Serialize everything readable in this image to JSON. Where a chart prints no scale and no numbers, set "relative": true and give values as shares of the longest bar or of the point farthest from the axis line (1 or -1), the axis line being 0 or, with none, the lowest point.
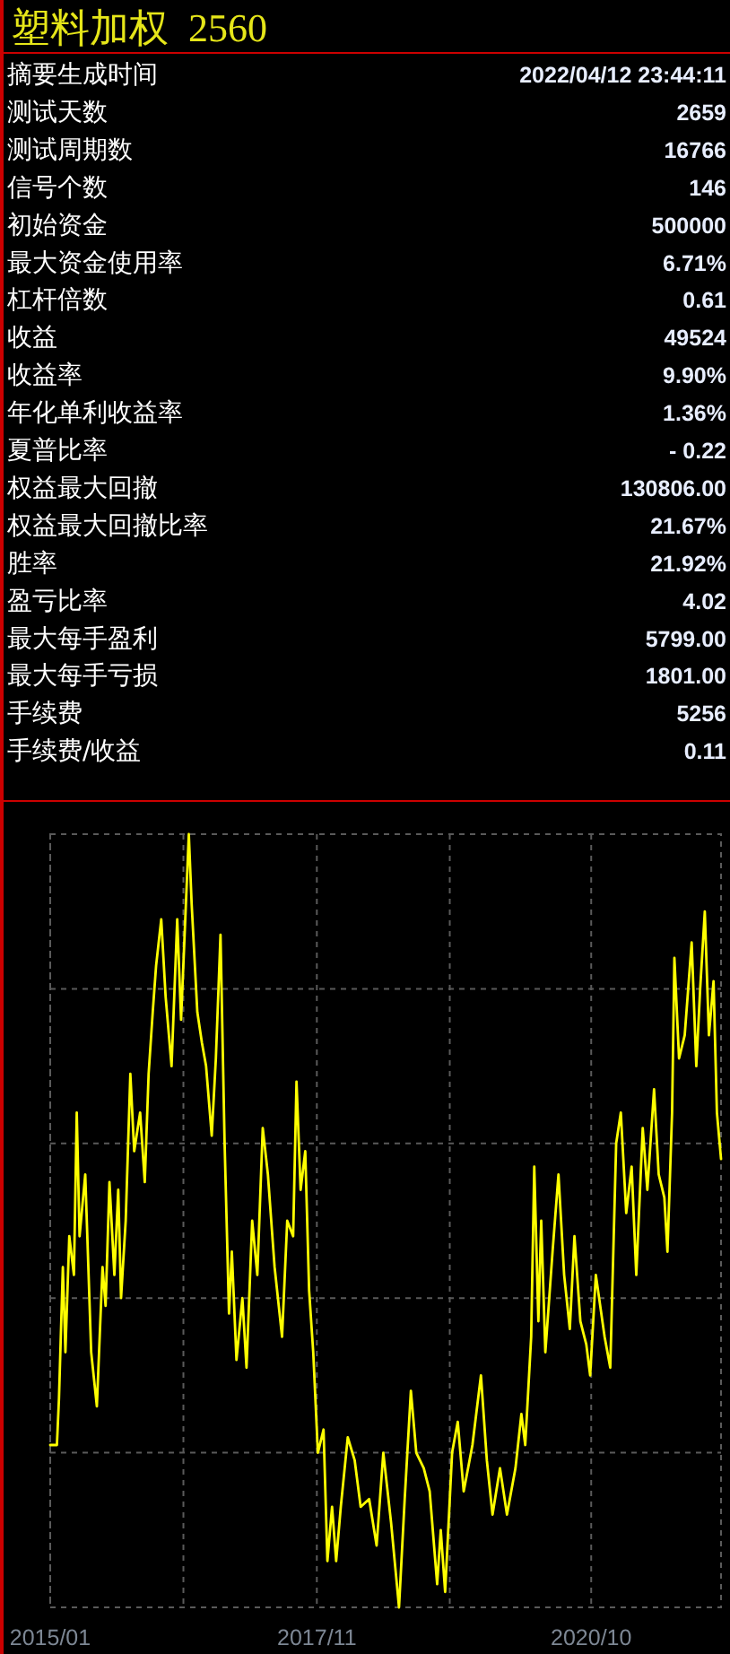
{
  "chart_data": [
    {
      "type": "other",
      "title": "塑料加权  2560",
      "categories": [
        "摘要生成时间",
        "测试天数",
        "测试周期数",
        "信号个数",
        "初始资金",
        "最大资金使用率",
        "杠杆倍数",
        "收益",
        "收益率",
        "年化单利收益率",
        "夏普比率",
        "权益最大回撤",
        "权益最大回撤比率",
        "胜率",
        "盈亏比率",
        "最大每手盈利",
        "最大每手亏损",
        "手续费",
        "手续费/收益"
      ],
      "value_labels": [
        "2022/04/12 23:44:11",
        "2659",
        "16766",
        "146",
        "500000",
        "6.71%",
        "0.61",
        "49524",
        "9.90%",
        "1.36%",
        "- 0.22",
        "130806.00",
        "21.67%",
        "21.92%",
        "4.02",
        "5799.00",
        "1801.00",
        "5256",
        "0.11"
      ]
    },
    {
      "type": "line",
      "relative": true,
      "grid": true,
      "xlim": [
        "2015-01-01",
        "2022-02-17"
      ],
      "xticks": [
        {
          "value": "2015-01",
          "label": "2015/01"
        },
        {
          "value": "2016-06",
          "label": null
        },
        {
          "value": "2017-11",
          "label": "2017/11"
        },
        {
          "value": "2019-04",
          "label": null
        },
        {
          "value": "2020-10",
          "label": "2020/10"
        }
      ],
      "x": [
        "2015-01-01",
        "2015-01-27",
        "2015-02-04",
        "2015-02-19",
        "2015-03-01",
        "2015-03-16",
        "2015-04-03",
        "2015-04-14",
        "2015-04-25",
        "2015-05-17",
        "2015-06-09",
        "2015-07-01",
        "2015-07-23",
        "2015-08-04",
        "2015-08-19",
        "2015-09-07",
        "2015-09-22",
        "2015-10-03",
        "2015-10-21",
        "2015-11-08",
        "2015-11-23",
        "2015-12-16",
        "2016-01-03",
        "2016-01-18",
        "2016-02-03",
        "2016-02-16",
        "2016-03-07",
        "2016-03-24",
        "2016-04-16",
        "2016-05-08",
        "2016-05-23",
        "2016-06-22",
        "2016-07-03",
        "2016-07-25",
        "2016-08-12",
        "2016-08-28",
        "2016-09-19",
        "2016-10-05",
        "2016-10-23",
        "2016-11-08",
        "2016-11-25",
        "2016-12-06",
        "2016-12-24",
        "2017-01-16",
        "2017-02-01",
        "2017-02-23",
        "2017-03-15",
        "2017-04-05",
        "2017-04-25",
        "2017-05-21",
        "2017-06-19",
        "2017-07-09",
        "2017-08-01",
        "2017-08-14",
        "2017-08-30",
        "2017-09-17",
        "2017-10-02",
        "2017-10-18",
        "2017-11-05",
        "2017-11-27",
        "2017-12-12",
        "2017-12-30",
        "2018-01-15",
        "2018-02-02",
        "2018-03-01",
        "2018-03-28",
        "2018-04-20",
        "2018-05-23",
        "2018-06-21",
        "2018-07-17",
        "2018-08-16",
        "2018-09-16",
        "2018-10-08",
        "2018-11-01",
        "2018-11-22",
        "2018-12-21",
        "2019-01-13",
        "2019-02-11",
        "2019-02-25",
        "2019-03-14",
        "2019-04-10",
        "2019-05-02",
        "2019-05-25",
        "2019-06-28",
        "2019-07-31",
        "2019-08-23",
        "2019-09-14",
        "2019-10-13",
        "2019-11-09",
        "2019-12-12",
        "2020-01-04",
        "2020-01-19",
        "2020-02-11",
        "2020-02-23",
        "2020-03-10",
        "2020-03-21",
        "2020-04-06",
        "2020-05-04",
        "2020-05-27",
        "2020-06-18",
        "2020-07-10",
        "2020-07-28",
        "2020-08-20",
        "2020-09-12",
        "2020-09-27",
        "2020-10-19",
        "2020-11-22",
        "2020-12-14",
        "2021-01-06",
        "2021-01-24",
        "2021-02-14",
        "2021-03-07",
        "2021-03-25",
        "2021-04-19",
        "2021-05-07",
        "2021-06-02",
        "2021-06-20",
        "2021-07-12",
        "2021-07-24",
        "2021-08-11",
        "2021-08-20",
        "2021-09-07",
        "2021-09-29",
        "2021-10-26",
        "2021-11-13",
        "2021-11-28",
        "2021-12-16",
        "2022-01-01",
        "2022-01-19",
        "2022-02-01",
        "2022-02-17"
      ],
      "series": [
        {
          "color": "#ffff00",
          "values": [
            0.21,
            0.21,
            0.27,
            0.44,
            0.33,
            0.48,
            0.43,
            0.64,
            0.48,
            0.56,
            0.33,
            0.26,
            0.44,
            0.39,
            0.55,
            0.43,
            0.54,
            0.4,
            0.5,
            0.69,
            0.59,
            0.64,
            0.55,
            0.69,
            0.77,
            0.83,
            0.89,
            0.79,
            0.7,
            0.89,
            0.76,
            1.0,
            0.91,
            0.77,
            0.73,
            0.7,
            0.61,
            0.71,
            0.87,
            0.6,
            0.38,
            0.46,
            0.32,
            0.4,
            0.31,
            0.5,
            0.43,
            0.62,
            0.56,
            0.44,
            0.35,
            0.5,
            0.48,
            0.68,
            0.54,
            0.59,
            0.41,
            0.33,
            0.2,
            0.23,
            0.06,
            0.13,
            0.06,
            0.13,
            0.22,
            0.19,
            0.13,
            0.14,
            0.08,
            0.2,
            0.11,
            0.0,
            0.14,
            0.28,
            0.2,
            0.18,
            0.15,
            0.03,
            0.1,
            0.02,
            0.2,
            0.24,
            0.15,
            0.21,
            0.3,
            0.19,
            0.12,
            0.18,
            0.12,
            0.18,
            0.25,
            0.21,
            0.35,
            0.57,
            0.37,
            0.5,
            0.33,
            0.46,
            0.56,
            0.43,
            0.36,
            0.48,
            0.37,
            0.34,
            0.3,
            0.43,
            0.35,
            0.31,
            0.6,
            0.64,
            0.51,
            0.57,
            0.43,
            0.62,
            0.54,
            0.67,
            0.56,
            0.53,
            0.46,
            0.64,
            0.84,
            0.71,
            0.74,
            0.86,
            0.7,
            0.8,
            0.9,
            0.74,
            0.81,
            0.64,
            0.58
          ]
        }
      ]
    }
  ]
}
